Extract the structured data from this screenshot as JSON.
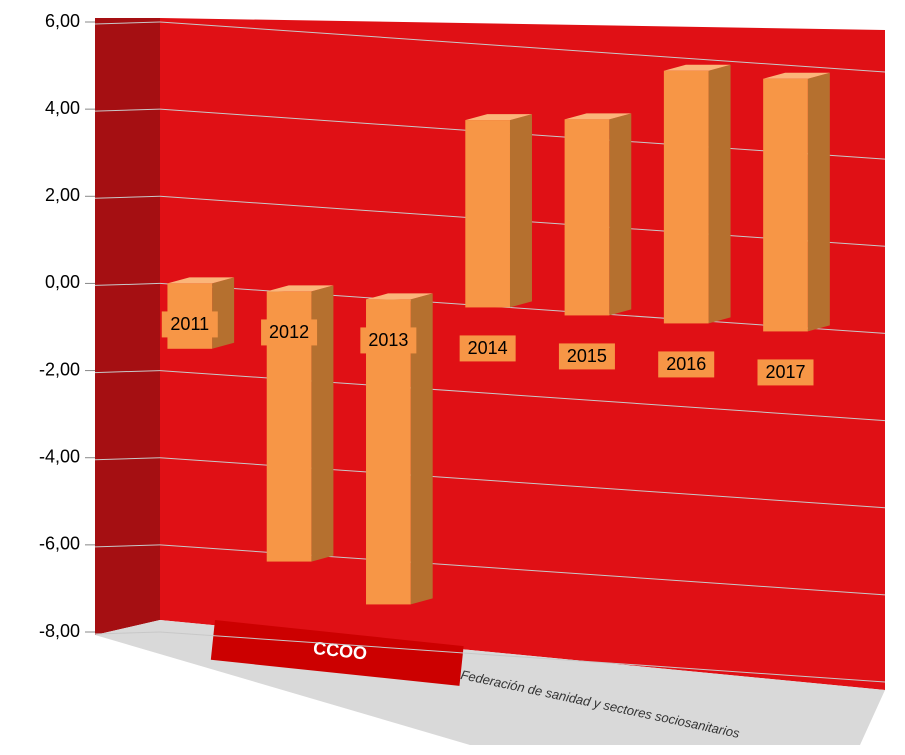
{
  "chart_data": {
    "type": "bar",
    "categories": [
      "2011",
      "2012",
      "2013",
      "2014",
      "2015",
      "2016",
      "2017"
    ],
    "values": [
      -1.5,
      -6.2,
      -7.0,
      4.3,
      4.5,
      5.8,
      5.8
    ],
    "color": "#f79646",
    "ylim": [
      -8,
      6
    ],
    "yticks": [
      {
        "value": -8,
        "label": "-8,00"
      },
      {
        "value": -6,
        "label": "-6,00"
      },
      {
        "value": -4,
        "label": "-4,00"
      },
      {
        "value": -2,
        "label": "-2,00"
      },
      {
        "value": 0,
        "label": "0,00"
      },
      {
        "value": 2,
        "label": "2,00"
      },
      {
        "value": 4,
        "label": "4,00"
      },
      {
        "value": 6,
        "label": "6,00"
      }
    ],
    "grid": true,
    "annotations": [
      "CCOO",
      "Federación de sanidad y sectores sociosanitarios"
    ]
  }
}
